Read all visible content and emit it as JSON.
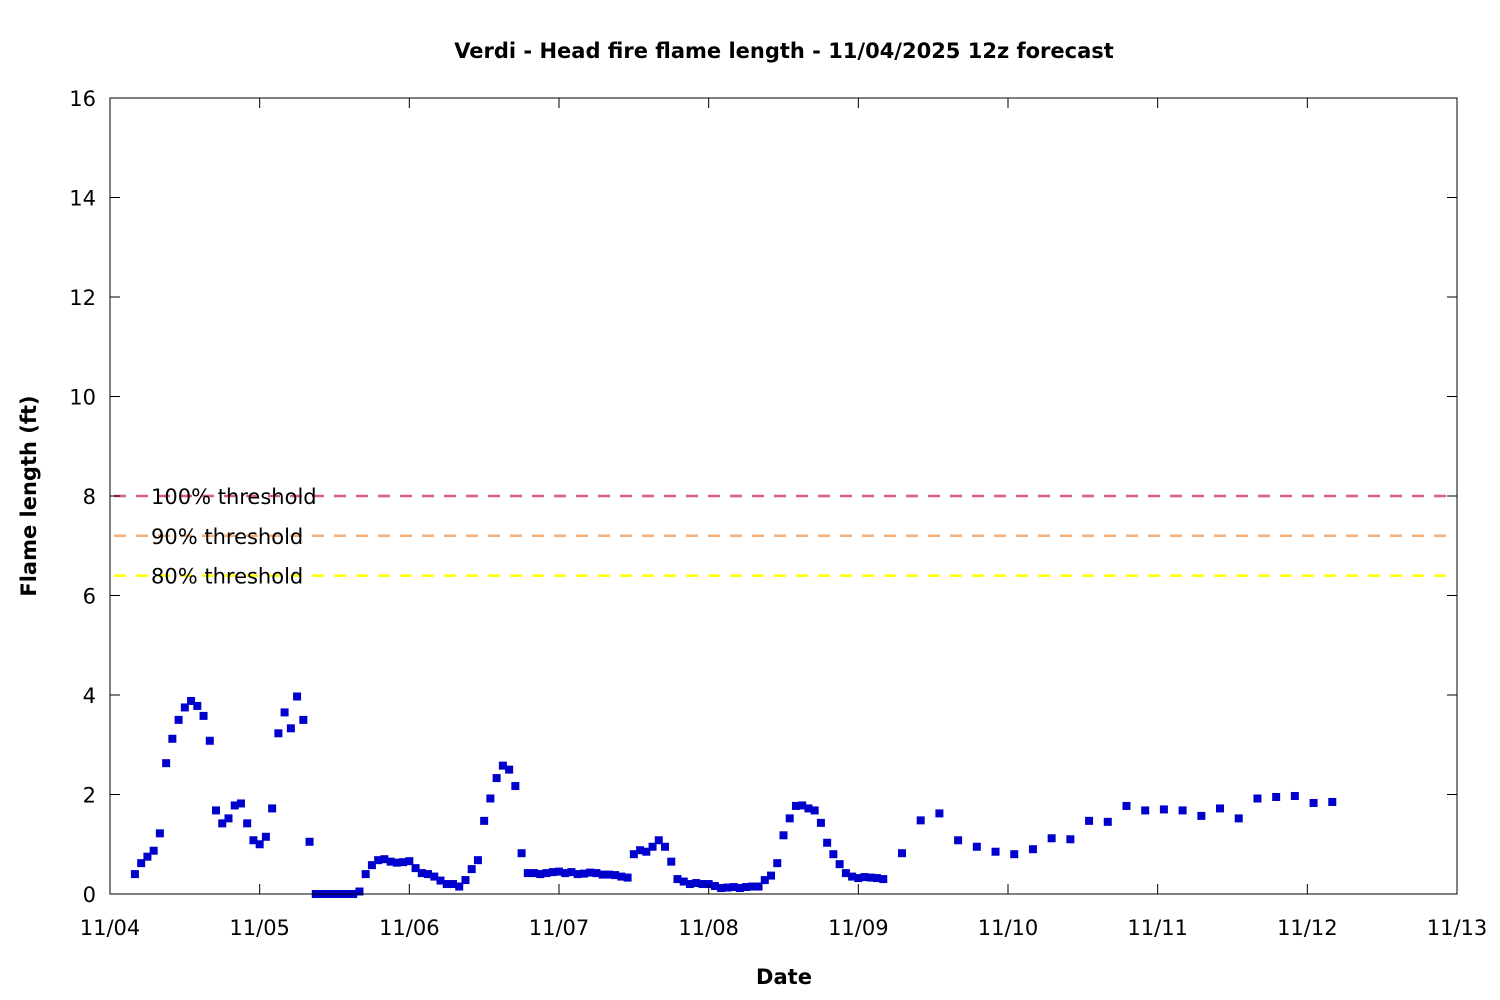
{
  "chart_data": {
    "type": "scatter",
    "title": "Verdi - Head fire flame length - 11/04/2025 12z forecast",
    "xlabel": "Date",
    "ylabel": "Flame length (ft)",
    "xlim": [
      "11/04",
      "11/13"
    ],
    "ylim": [
      0,
      16
    ],
    "x_tick_labels": [
      "11/04",
      "11/05",
      "11/06",
      "11/07",
      "11/08",
      "11/09",
      "11/10",
      "11/11",
      "11/12",
      "11/13"
    ],
    "y_tick_labels": [
      "0",
      "2",
      "4",
      "6",
      "8",
      "10",
      "12",
      "14",
      "16"
    ],
    "grid": false,
    "marker_color": "#0000cd",
    "thresholds": [
      {
        "label": "100% threshold",
        "value": 8.0,
        "color": "#d9607a"
      },
      {
        "label": "90% threshold",
        "value": 7.2,
        "color": "#f5b07a"
      },
      {
        "label": "80% threshold",
        "value": 6.4,
        "color": "#ffff00"
      }
    ],
    "series": [
      {
        "x": [
          "11/04 04:00",
          "11/04 05:00",
          "11/04 06:00",
          "11/04 07:00",
          "11/04 08:00",
          "11/04 09:00",
          "11/04 10:00",
          "11/04 11:00",
          "11/04 12:00",
          "11/04 13:00",
          "11/04 14:00",
          "11/04 15:00",
          "11/04 16:00",
          "11/04 17:00",
          "11/04 18:00",
          "11/04 19:00",
          "11/04 20:00",
          "11/04 21:00",
          "11/04 22:00",
          "11/04 23:00",
          "11/05 00:00",
          "11/05 01:00",
          "11/05 02:00",
          "11/05 03:00",
          "11/05 04:00",
          "11/05 05:00",
          "11/05 06:00",
          "11/05 07:00",
          "11/05 08:00",
          "11/05 09:00",
          "11/05 10:00",
          "11/05 11:00",
          "11/05 12:00",
          "11/05 13:00",
          "11/05 14:00",
          "11/05 15:00",
          "11/05 16:00",
          "11/05 17:00",
          "11/05 18:00",
          "11/05 19:00",
          "11/05 20:00",
          "11/05 21:00",
          "11/05 22:00",
          "11/05 23:00",
          "11/06 00:00",
          "11/06 01:00",
          "11/06 02:00",
          "11/06 03:00",
          "11/06 04:00",
          "11/06 05:00",
          "11/06 06:00",
          "11/06 07:00",
          "11/06 08:00",
          "11/06 09:00",
          "11/06 10:00",
          "11/06 11:00",
          "11/06 12:00",
          "11/06 13:00",
          "11/06 14:00",
          "11/06 15:00",
          "11/06 16:00",
          "11/06 17:00",
          "11/06 18:00",
          "11/06 19:00",
          "11/06 20:00",
          "11/06 21:00",
          "11/06 22:00",
          "11/06 23:00",
          "11/07 00:00",
          "11/07 01:00",
          "11/07 02:00",
          "11/07 03:00",
          "11/07 04:00",
          "11/07 05:00",
          "11/07 06:00",
          "11/07 07:00",
          "11/07 08:00",
          "11/07 09:00",
          "11/07 10:00",
          "11/07 11:00",
          "11/07 12:00",
          "11/07 13:00",
          "11/07 14:00",
          "11/07 15:00",
          "11/07 16:00",
          "11/07 17:00",
          "11/07 18:00",
          "11/07 19:00",
          "11/07 20:00",
          "11/07 21:00",
          "11/07 22:00",
          "11/07 23:00",
          "11/08 00:00",
          "11/08 01:00",
          "11/08 02:00",
          "11/08 03:00",
          "11/08 04:00",
          "11/08 05:00",
          "11/08 06:00",
          "11/08 07:00",
          "11/08 08:00",
          "11/08 09:00",
          "11/08 10:00",
          "11/08 11:00",
          "11/08 12:00",
          "11/08 13:00",
          "11/08 14:00",
          "11/08 15:00",
          "11/08 16:00",
          "11/08 17:00",
          "11/08 18:00",
          "11/08 19:00",
          "11/08 20:00",
          "11/08 21:00",
          "11/08 22:00",
          "11/08 23:00",
          "11/09 00:00",
          "11/09 01:00",
          "11/09 02:00",
          "11/09 03:00",
          "11/09 04:00",
          "11/09 07:00",
          "11/09 10:00",
          "11/09 13:00",
          "11/09 16:00",
          "11/09 19:00",
          "11/09 22:00",
          "11/10 01:00",
          "11/10 04:00",
          "11/10 07:00",
          "11/10 10:00",
          "11/10 13:00",
          "11/10 16:00",
          "11/10 19:00",
          "11/10 22:00",
          "11/11 01:00",
          "11/11 04:00",
          "11/11 07:00",
          "11/11 10:00",
          "11/11 13:00",
          "11/11 16:00",
          "11/11 19:00",
          "11/11 22:00",
          "11/12 01:00",
          "11/12 04:00"
        ],
        "y": [
          0.4,
          0.62,
          0.75,
          0.87,
          1.22,
          2.63,
          3.12,
          3.5,
          3.75,
          3.88,
          3.78,
          3.58,
          3.08,
          1.68,
          1.42,
          1.52,
          1.78,
          1.82,
          1.42,
          1.08,
          1.0,
          1.15,
          1.72,
          3.23,
          3.65,
          3.33,
          3.97,
          3.5,
          1.05,
          0.0,
          0.0,
          0.0,
          0.0,
          0.0,
          0.0,
          0.0,
          0.05,
          0.4,
          0.58,
          0.68,
          0.7,
          0.65,
          0.63,
          0.64,
          0.66,
          0.52,
          0.42,
          0.4,
          0.35,
          0.27,
          0.2,
          0.2,
          0.15,
          0.28,
          0.5,
          0.68,
          1.47,
          1.92,
          2.33,
          2.58,
          2.5,
          2.17,
          0.82,
          0.42,
          0.42,
          0.4,
          0.42,
          0.44,
          0.45,
          0.42,
          0.44,
          0.4,
          0.41,
          0.43,
          0.42,
          0.39,
          0.39,
          0.38,
          0.35,
          0.33,
          0.8,
          0.88,
          0.85,
          0.95,
          1.08,
          0.95,
          0.65,
          0.3,
          0.25,
          0.2,
          0.22,
          0.2,
          0.2,
          0.16,
          0.12,
          0.13,
          0.14,
          0.12,
          0.14,
          0.15,
          0.15,
          0.28,
          0.37,
          0.62,
          1.18,
          1.52,
          1.77,
          1.78,
          1.72,
          1.68,
          1.43,
          1.03,
          0.8,
          0.6,
          0.42,
          0.35,
          0.32,
          0.34,
          0.33,
          0.32,
          0.3,
          0.82,
          1.48,
          1.62,
          1.08,
          0.95,
          0.85,
          0.8,
          0.9,
          1.12,
          1.1,
          1.47,
          1.45,
          1.77,
          1.68,
          1.7,
          1.68,
          1.57,
          1.72,
          1.52,
          1.92,
          1.95,
          1.97,
          1.83,
          1.85
        ]
      }
    ]
  }
}
